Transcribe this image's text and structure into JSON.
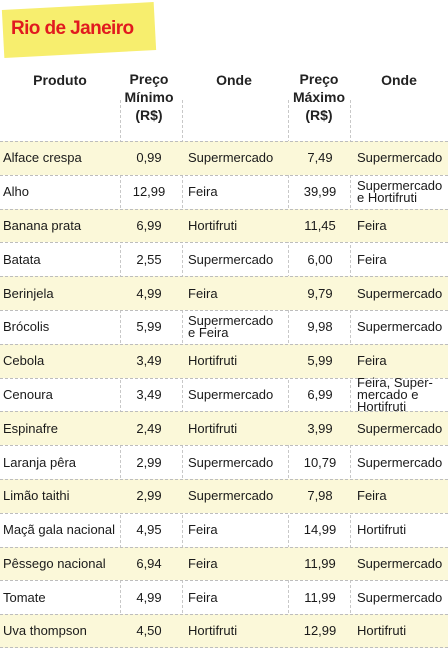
{
  "title": "Rio de Janeiro",
  "headers": {
    "produto": "Produto",
    "preco_min": [
      "Preço",
      "Mínimo",
      "(R$)"
    ],
    "onde1": "Onde",
    "preco_max": [
      "Preço",
      "Máximo",
      "(R$)"
    ],
    "onde2": "Onde"
  },
  "rows": [
    {
      "produto": "Alface crespa",
      "min": "0,99",
      "onde_min": "Supermercado",
      "max": "7,49",
      "onde_max": "Supermercado"
    },
    {
      "produto": "Alho",
      "min": "12,99",
      "onde_min": "Feira",
      "max": "39,99",
      "onde_max": "Supermercado\ne Hortifruti"
    },
    {
      "produto": "Banana prata",
      "min": "6,99",
      "onde_min": "Hortifruti",
      "max": "11,45",
      "onde_max": "Feira"
    },
    {
      "produto": "Batata",
      "min": "2,55",
      "onde_min": "Supermercado",
      "max": "6,00",
      "onde_max": "Feira"
    },
    {
      "produto": "Berinjela",
      "min": "4,99",
      "onde_min": "Feira",
      "max": "9,79",
      "onde_max": "Supermercado"
    },
    {
      "produto": "Brócolis",
      "min": "5,99",
      "onde_min": "Supermercado\n e Feira",
      "max": "9,98",
      "onde_max": "Supermercado"
    },
    {
      "produto": "Cebola",
      "min": "3,49",
      "onde_min": "Hortifruti",
      "max": "5,99",
      "onde_max": "Feira"
    },
    {
      "produto": "Cenoura",
      "min": "3,49",
      "onde_min": "Supermercado",
      "max": "6,99",
      "onde_max": "Feira, Super-\nmercado e\nHortifruti"
    },
    {
      "produto": "Espinafre",
      "min": "2,49",
      "onde_min": "Hortifruti",
      "max": "3,99",
      "onde_max": "Supermercado"
    },
    {
      "produto": "Laranja pêra",
      "min": "2,99",
      "onde_min": "Supermercado",
      "max": "10,79",
      "onde_max": "Supermercado"
    },
    {
      "produto": "Limão taithi",
      "min": "2,99",
      "onde_min": "Supermercado",
      "max": "7,98",
      "onde_max": "Feira"
    },
    {
      "produto": "Maçã gala nacional",
      "min": "4,95",
      "onde_min": "Feira",
      "max": "14,99",
      "onde_max": "Hortifruti"
    },
    {
      "produto": "Pêssego nacional",
      "min": "6,94",
      "onde_min": "Feira",
      "max": "11,99",
      "onde_max": "Supermercado"
    },
    {
      "produto": "Tomate",
      "min": "4,99",
      "onde_min": "Feira",
      "max": "11,99",
      "onde_max": "Supermercado"
    },
    {
      "produto": "Uva thompson",
      "min": "4,50",
      "onde_min": "Hortifruti",
      "max": "12,99",
      "onde_max": "Hortifruti"
    }
  ],
  "colors": {
    "title": "#e11a1f",
    "highlight": "#f7ee6e",
    "row_band": "#fbf8d9"
  }
}
